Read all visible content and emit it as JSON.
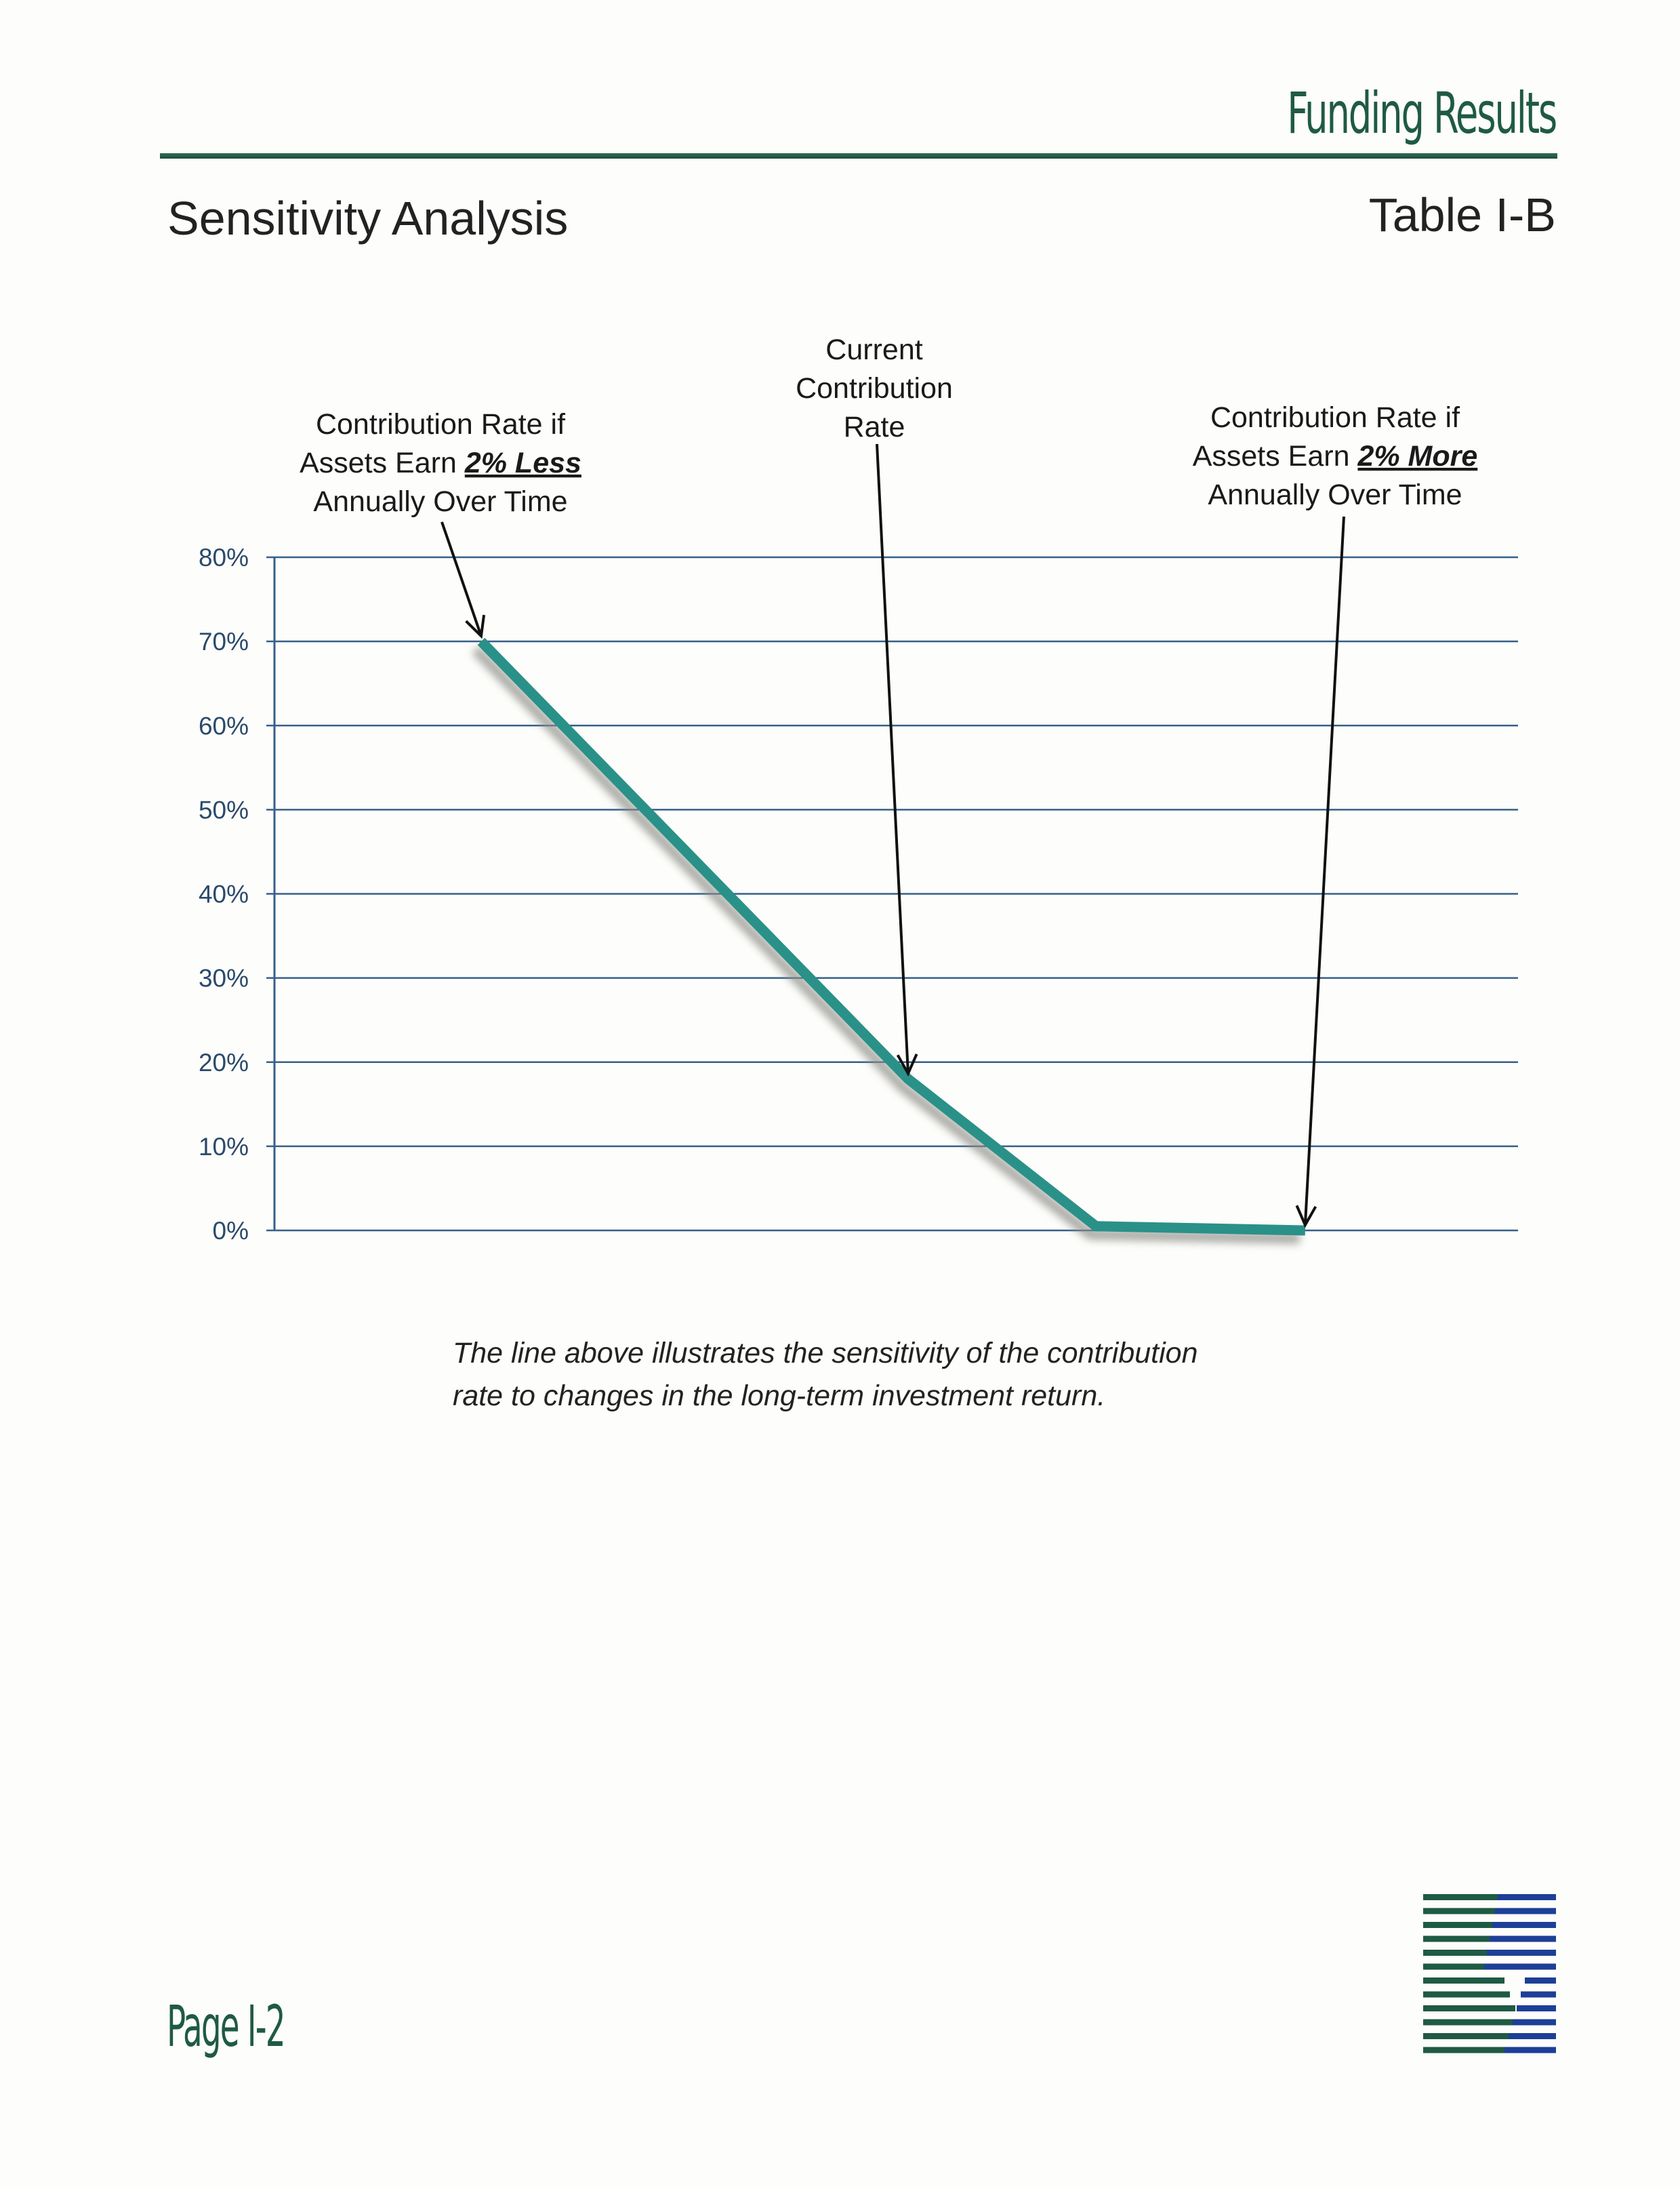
{
  "header": {
    "section_label": "Funding Results",
    "page_title": "Sensitivity Analysis",
    "table_label": "Table I-B"
  },
  "chart_data": {
    "type": "line",
    "series": [
      {
        "points": [
          {
            "x": 0,
            "y": 70
          },
          {
            "x": 1,
            "y": 18
          },
          {
            "x": 1.44,
            "y": 0.5
          },
          {
            "x": 1.93,
            "y": 0
          }
        ]
      }
    ],
    "ylim": [
      0,
      80
    ],
    "yticks": [
      0,
      10,
      20,
      30,
      40,
      50,
      60,
      70,
      80
    ],
    "ytick_labels": [
      "0%",
      "10%",
      "20%",
      "30%",
      "40%",
      "50%",
      "60%",
      "70%",
      "80%"
    ],
    "grid": true,
    "line_color": "#2a9188",
    "annotations": [
      {
        "id": "less",
        "lines": [
          [
            {
              "text": "Contribution Rate if"
            }
          ],
          [
            {
              "text": "Assets Earn "
            },
            {
              "text": "2% Less",
              "emphasis": true
            }
          ],
          [
            {
              "text": "Annually Over Time"
            }
          ]
        ],
        "target": {
          "x": 0,
          "y": 70
        }
      },
      {
        "id": "current",
        "lines": [
          [
            {
              "text": "Current"
            }
          ],
          [
            {
              "text": "Contribution"
            }
          ],
          [
            {
              "text": "Rate"
            }
          ]
        ],
        "target": {
          "x": 1,
          "y": 18
        }
      },
      {
        "id": "more",
        "lines": [
          [
            {
              "text": "Contribution Rate if"
            }
          ],
          [
            {
              "text": "Assets Earn "
            },
            {
              "text": "2% More",
              "emphasis": true
            }
          ],
          [
            {
              "text": "Annually Over Time"
            }
          ]
        ],
        "target": {
          "x": 1.93,
          "y": 0
        }
      }
    ]
  },
  "caption": {
    "line1": "The line above illustrates the sensitivity of the contribution",
    "line2": "rate to changes in the long-term investment return."
  },
  "footer": {
    "page_number": "Page I-2"
  }
}
